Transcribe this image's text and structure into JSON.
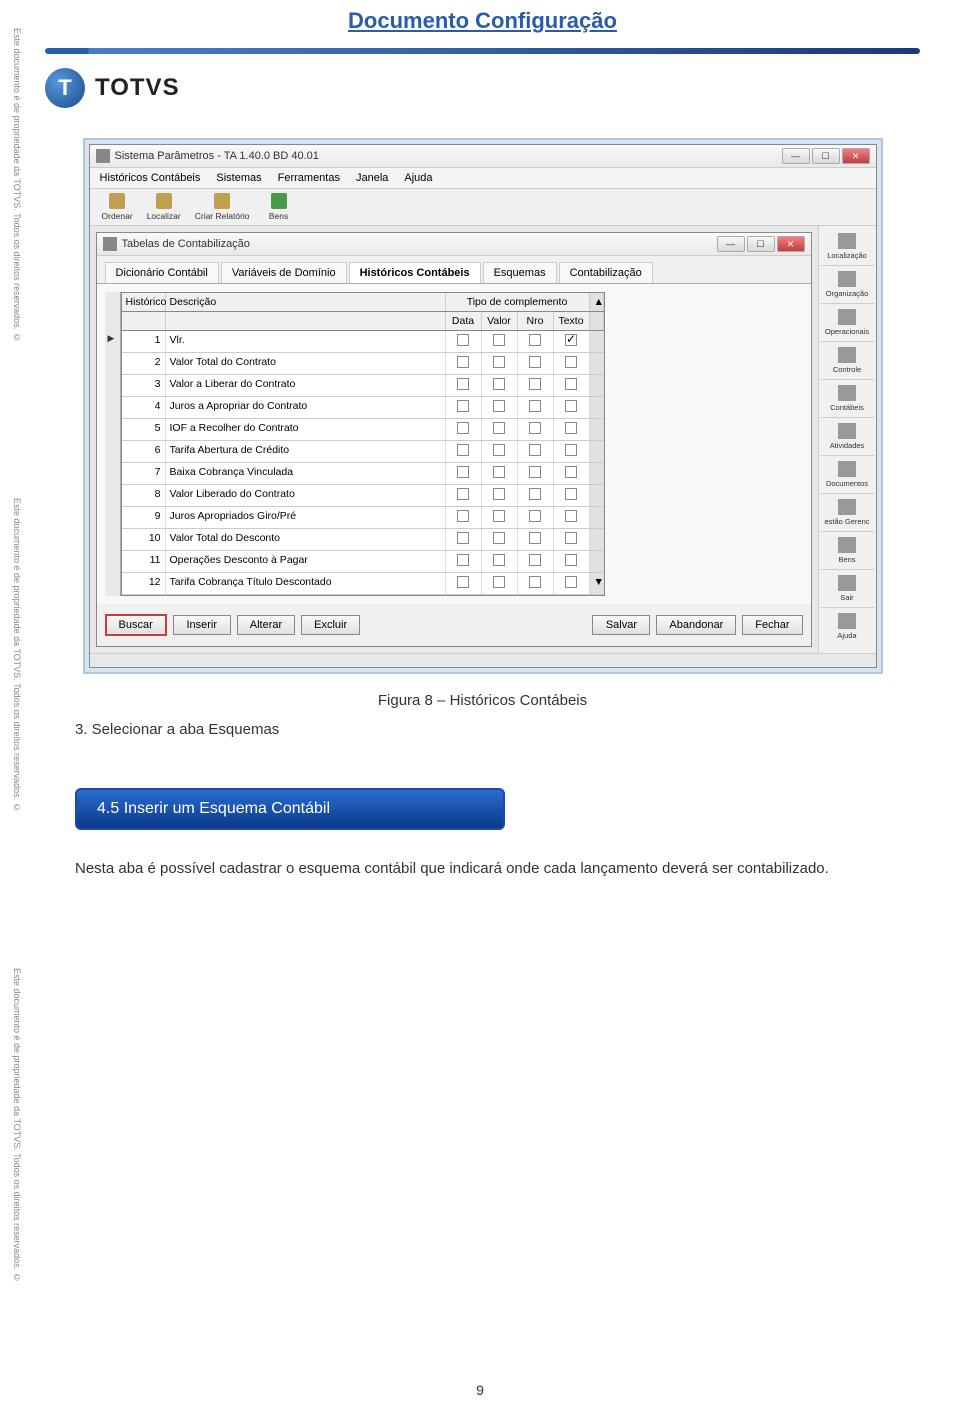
{
  "copyright": "Este documento é de propriedade da TOTVS. Todos os direitos reservados. ©",
  "doc_title": "Documento Configuração",
  "logo_letter": "T",
  "logo_text": "TOTVS",
  "outer_window": {
    "title": "Sistema Parâmetros - TA 1.40.0 BD 40.01",
    "menus": [
      "Históricos Contábeis",
      "Sistemas",
      "Ferramentas",
      "Janela",
      "Ajuda"
    ],
    "toolbar": [
      {
        "label": "Ordenar"
      },
      {
        "label": "Localizar"
      },
      {
        "label": "Criar Relatório"
      },
      {
        "label": "Bens"
      }
    ]
  },
  "inner_window": {
    "title": "Tabelas de Contabilização",
    "tabs": [
      {
        "label": "Dicionário Contábil",
        "active": false
      },
      {
        "label": "Variáveis de Domínio",
        "active": false
      },
      {
        "label": "Históricos Contábeis",
        "active": true
      },
      {
        "label": "Esquemas",
        "active": false
      },
      {
        "label": "Contabilização",
        "active": false
      }
    ],
    "grid": {
      "col_historico": "Histórico",
      "col_descricao": "Descrição",
      "col_tipo": "Tipo de complemento",
      "col_data": "Data",
      "col_valor": "Valor",
      "col_nro": "Nro",
      "col_texto": "Texto",
      "rows": [
        {
          "n": "1",
          "desc": "Vlr.",
          "data": false,
          "valor": false,
          "nro": false,
          "texto": true,
          "ptr": true
        },
        {
          "n": "2",
          "desc": "Valor Total do Contrato",
          "data": false,
          "valor": false,
          "nro": false,
          "texto": false
        },
        {
          "n": "3",
          "desc": "Valor a Liberar do Contrato",
          "data": false,
          "valor": false,
          "nro": false,
          "texto": false
        },
        {
          "n": "4",
          "desc": "Juros a Apropriar do Contrato",
          "data": false,
          "valor": false,
          "nro": false,
          "texto": false
        },
        {
          "n": "5",
          "desc": "IOF a Recolher do Contrato",
          "data": false,
          "valor": false,
          "nro": false,
          "texto": false
        },
        {
          "n": "6",
          "desc": "Tarifa Abertura de Crédito",
          "data": false,
          "valor": false,
          "nro": false,
          "texto": false
        },
        {
          "n": "7",
          "desc": "Baixa Cobrança Vinculada",
          "data": false,
          "valor": false,
          "nro": false,
          "texto": false
        },
        {
          "n": "8",
          "desc": "Valor Liberado do Contrato",
          "data": false,
          "valor": false,
          "nro": false,
          "texto": false
        },
        {
          "n": "9",
          "desc": "Juros Apropriados Giro/Pré",
          "data": false,
          "valor": false,
          "nro": false,
          "texto": false
        },
        {
          "n": "10",
          "desc": "Valor Total do Desconto",
          "data": false,
          "valor": false,
          "nro": false,
          "texto": false
        },
        {
          "n": "11",
          "desc": "Operações Desconto à Pagar",
          "data": false,
          "valor": false,
          "nro": false,
          "texto": false
        },
        {
          "n": "12",
          "desc": "Tarifa Cobrança Título Descontado",
          "data": false,
          "valor": false,
          "nro": false,
          "texto": false
        }
      ]
    },
    "actions": {
      "buscar": "Buscar",
      "inserir": "Inserir",
      "alterar": "Alterar",
      "excluir": "Excluir",
      "salvar": "Salvar",
      "abandonar": "Abandonar",
      "fechar": "Fechar"
    }
  },
  "side_panel": [
    {
      "label": "Localização"
    },
    {
      "label": "Organização"
    },
    {
      "label": "Operacionais"
    },
    {
      "label": "Controle"
    },
    {
      "label": "Contábeis"
    },
    {
      "label": "Atividades"
    },
    {
      "label": "Documentos"
    },
    {
      "label": "estão Gerenc"
    },
    {
      "label": "Bens"
    },
    {
      "label": "Sair"
    },
    {
      "label": "Ajuda"
    }
  ],
  "caption": "Figura 8 – Históricos Contábeis",
  "step_text": "3. Selecionar a aba Esquemas",
  "section_title": "4.5    Inserir um Esquema Contábil",
  "paragraph": "Nesta aba é possível cadastrar o esquema contábil que indicará onde cada lançamento deverá ser contabilizado.",
  "page_number": "9"
}
